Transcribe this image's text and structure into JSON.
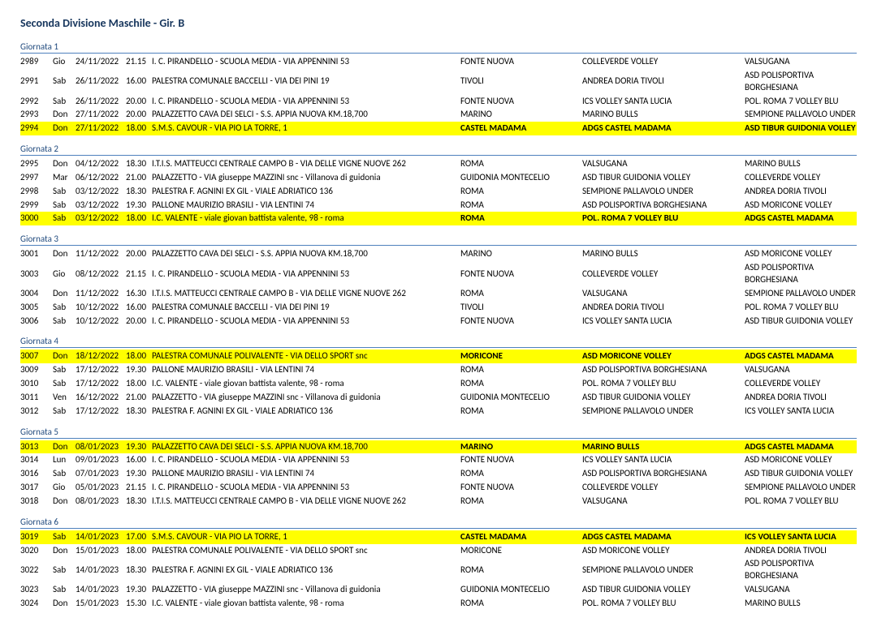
{
  "title": "Seconda Divisione Maschile  - Gir. B",
  "giornate": [
    {
      "label": "Giornata 1",
      "rows": [
        {
          "id": "2989",
          "day": "Gio",
          "date": "24/11/2022",
          "time": "21.15",
          "venue": "I. C. PIRANDELLO - SCUOLA MEDIA - VIA APPENNINI 53",
          "city": "FONTE NUOVA",
          "home": "COLLEVERDE VOLLEY",
          "away": "VALSUGANA",
          "hl": false
        },
        {
          "id": "2991",
          "day": "Sab",
          "date": "26/11/2022",
          "time": "16.00",
          "venue": "PALESTRA COMUNALE BACCELLI - VIA DEI PINI 19",
          "city": "TIVOLI",
          "home": "ANDREA DORIA TIVOLI",
          "away": "ASD POLISPORTIVA BORGHESIANA",
          "hl": false
        },
        {
          "id": "2992",
          "day": "Sab",
          "date": "26/11/2022",
          "time": "20.00",
          "venue": "I. C. PIRANDELLO - SCUOLA MEDIA - VIA APPENNINI 53",
          "city": "FONTE NUOVA",
          "home": "ICS VOLLEY SANTA LUCIA",
          "away": "POL. ROMA 7 VOLLEY BLU",
          "hl": false
        },
        {
          "id": "2993",
          "day": "Don",
          "date": "27/11/2022",
          "time": "20.00",
          "venue": "PALAZZETTO CAVA DEI SELCI - S.S. APPIA NUOVA KM.18,700",
          "city": "MARINO",
          "home": "MARINO  BULLS",
          "away": "SEMPIONE PALLAVOLO UNDER",
          "hl": false
        },
        {
          "id": "2994",
          "day": "Don",
          "date": "27/11/2022",
          "time": "18.00",
          "venue": "S.M.S. CAVOUR - VIA PIO LA TORRE, 1",
          "city": "CASTEL MADAMA",
          "home": "ADGS CASTEL MADAMA",
          "away": "ASD TIBUR GUIDONIA VOLLEY",
          "hl": true
        }
      ]
    },
    {
      "label": "Giornata 2",
      "rows": [
        {
          "id": "2995",
          "day": "Don",
          "date": "04/12/2022",
          "time": "18.30",
          "venue": "I.T.I.S. MATTEUCCI CENTRALE CAMPO B - VIA DELLE VIGNE NUOVE 262",
          "city": "ROMA",
          "home": "VALSUGANA",
          "away": "MARINO  BULLS",
          "hl": false
        },
        {
          "id": "2997",
          "day": "Mar",
          "date": "06/12/2022",
          "time": "21.00",
          "venue": "PALAZZETTO - VIA giuseppe MAZZINI snc - Villanova di guidonia",
          "city": "GUIDONIA MONTECELIO",
          "home": "ASD TIBUR GUIDONIA VOLLEY",
          "away": "COLLEVERDE VOLLEY",
          "hl": false
        },
        {
          "id": "2998",
          "day": "Sab",
          "date": "03/12/2022",
          "time": "18.30",
          "venue": "PALESTRA F. AGNINI EX GIL - VIALE ADRIATICO 136",
          "city": "ROMA",
          "home": "SEMPIONE PALLAVOLO UNDER",
          "away": "ANDREA DORIA TIVOLI",
          "hl": false
        },
        {
          "id": "2999",
          "day": "Sab",
          "date": "03/12/2022",
          "time": "19.30",
          "venue": "PALLONE MAURIZIO BRASILI - VIA LENTINI 74",
          "city": "ROMA",
          "home": "ASD POLISPORTIVA BORGHESIANA",
          "away": "ASD MORICONE VOLLEY",
          "hl": false
        },
        {
          "id": "3000",
          "day": "Sab",
          "date": "03/12/2022",
          "time": "18.00",
          "venue": "I.C. VALENTE - viale giovan battista valente, 98 - roma",
          "city": "ROMA",
          "home": "POL. ROMA 7 VOLLEY BLU",
          "away": "ADGS CASTEL MADAMA",
          "hl": true
        }
      ]
    },
    {
      "label": "Giornata 3",
      "rows": [
        {
          "id": "3001",
          "day": "Don",
          "date": "11/12/2022",
          "time": "20.00",
          "venue": "PALAZZETTO CAVA DEI SELCI - S.S. APPIA NUOVA KM.18,700",
          "city": "MARINO",
          "home": "MARINO  BULLS",
          "away": "ASD MORICONE VOLLEY",
          "hl": false
        },
        {
          "id": "3003",
          "day": "Gio",
          "date": "08/12/2022",
          "time": "21.15",
          "venue": "I. C. PIRANDELLO - SCUOLA MEDIA - VIA APPENNINI 53",
          "city": "FONTE NUOVA",
          "home": "COLLEVERDE VOLLEY",
          "away": "ASD POLISPORTIVA BORGHESIANA",
          "hl": false
        },
        {
          "id": "3004",
          "day": "Don",
          "date": "11/12/2022",
          "time": "16.30",
          "venue": "I.T.I.S. MATTEUCCI CENTRALE CAMPO B - VIA DELLE VIGNE NUOVE 262",
          "city": "ROMA",
          "home": "VALSUGANA",
          "away": "SEMPIONE PALLAVOLO UNDER",
          "hl": false
        },
        {
          "id": "3005",
          "day": "Sab",
          "date": "10/12/2022",
          "time": "16.00",
          "venue": "PALESTRA COMUNALE BACCELLI - VIA DEI PINI 19",
          "city": "TIVOLI",
          "home": "ANDREA DORIA TIVOLI",
          "away": "POL. ROMA 7 VOLLEY BLU",
          "hl": false
        },
        {
          "id": "3006",
          "day": "Sab",
          "date": "10/12/2022",
          "time": "20.00",
          "venue": "I. C. PIRANDELLO - SCUOLA MEDIA - VIA APPENNINI 53",
          "city": "FONTE NUOVA",
          "home": "ICS VOLLEY SANTA LUCIA",
          "away": "ASD TIBUR GUIDONIA VOLLEY",
          "hl": false
        }
      ]
    },
    {
      "label": "Giornata 4",
      "rows": [
        {
          "id": "3007",
          "day": "Don",
          "date": "18/12/2022",
          "time": "18.00",
          "venue": "PALESTRA COMUNALE POLIVALENTE - VIA DELLO SPORT snc",
          "city": "MORICONE",
          "home": "ASD MORICONE VOLLEY",
          "away": "ADGS CASTEL MADAMA",
          "hl": true
        },
        {
          "id": "3009",
          "day": "Sab",
          "date": "17/12/2022",
          "time": "19.30",
          "venue": "PALLONE MAURIZIO BRASILI - VIA LENTINI 74",
          "city": "ROMA",
          "home": "ASD POLISPORTIVA BORGHESIANA",
          "away": "VALSUGANA",
          "hl": false
        },
        {
          "id": "3010",
          "day": "Sab",
          "date": "17/12/2022",
          "time": "18.00",
          "venue": "I.C. VALENTE - viale giovan battista valente, 98 - roma",
          "city": "ROMA",
          "home": "POL. ROMA 7 VOLLEY BLU",
          "away": "COLLEVERDE VOLLEY",
          "hl": false
        },
        {
          "id": "3011",
          "day": "Ven",
          "date": "16/12/2022",
          "time": "21.00",
          "venue": "PALAZZETTO - VIA giuseppe MAZZINI snc - Villanova di guidonia",
          "city": "GUIDONIA MONTECELIO",
          "home": "ASD TIBUR GUIDONIA VOLLEY",
          "away": "ANDREA DORIA TIVOLI",
          "hl": false
        },
        {
          "id": "3012",
          "day": "Sab",
          "date": "17/12/2022",
          "time": "18.30",
          "venue": "PALESTRA F. AGNINI EX GIL - VIALE ADRIATICO 136",
          "city": "ROMA",
          "home": "SEMPIONE PALLAVOLO UNDER",
          "away": "ICS VOLLEY SANTA LUCIA",
          "hl": false
        }
      ]
    },
    {
      "label": "Giornata 5",
      "rows": [
        {
          "id": "3013",
          "day": "Don",
          "date": "08/01/2023",
          "time": "19.30",
          "venue": "PALAZZETTO CAVA DEI SELCI - S.S. APPIA NUOVA KM.18,700",
          "city": "MARINO",
          "home": "MARINO  BULLS",
          "away": "ADGS CASTEL MADAMA",
          "hl": true
        },
        {
          "id": "3014",
          "day": "Lun",
          "date": "09/01/2023",
          "time": "16.00",
          "venue": "I. C. PIRANDELLO - SCUOLA MEDIA - VIA APPENNINI 53",
          "city": "FONTE NUOVA",
          "home": "ICS VOLLEY SANTA LUCIA",
          "away": "ASD MORICONE VOLLEY",
          "hl": false
        },
        {
          "id": "3016",
          "day": "Sab",
          "date": "07/01/2023",
          "time": "19.30",
          "venue": "PALLONE MAURIZIO BRASILI - VIA LENTINI 74",
          "city": "ROMA",
          "home": "ASD POLISPORTIVA BORGHESIANA",
          "away": "ASD TIBUR GUIDONIA VOLLEY",
          "hl": false
        },
        {
          "id": "3017",
          "day": "Gio",
          "date": "05/01/2023",
          "time": "21.15",
          "venue": "I. C. PIRANDELLO - SCUOLA MEDIA - VIA APPENNINI 53",
          "city": "FONTE NUOVA",
          "home": "COLLEVERDE VOLLEY",
          "away": "SEMPIONE PALLAVOLO UNDER",
          "hl": false
        },
        {
          "id": "3018",
          "day": "Don",
          "date": "08/01/2023",
          "time": "18.30",
          "venue": "I.T.I.S. MATTEUCCI CENTRALE CAMPO B - VIA DELLE VIGNE NUOVE 262",
          "city": "ROMA",
          "home": "VALSUGANA",
          "away": "POL. ROMA 7 VOLLEY BLU",
          "hl": false
        }
      ]
    },
    {
      "label": "Giornata 6",
      "rows": [
        {
          "id": "3019",
          "day": "Sab",
          "date": "14/01/2023",
          "time": "17.00",
          "venue": "S.M.S. CAVOUR - VIA PIO LA TORRE, 1",
          "city": "CASTEL MADAMA",
          "home": "ADGS CASTEL MADAMA",
          "away": "ICS VOLLEY SANTA LUCIA",
          "hl": true
        },
        {
          "id": "3020",
          "day": "Don",
          "date": "15/01/2023",
          "time": "18.00",
          "venue": "PALESTRA COMUNALE POLIVALENTE - VIA DELLO SPORT snc",
          "city": "MORICONE",
          "home": "ASD MORICONE VOLLEY",
          "away": "ANDREA DORIA TIVOLI",
          "hl": false
        },
        {
          "id": "3022",
          "day": "Sab",
          "date": "14/01/2023",
          "time": "18.30",
          "venue": "PALESTRA F. AGNINI EX GIL - VIALE ADRIATICO 136",
          "city": "ROMA",
          "home": "SEMPIONE PALLAVOLO UNDER",
          "away": "ASD POLISPORTIVA BORGHESIANA",
          "hl": false
        },
        {
          "id": "3023",
          "day": "Sab",
          "date": "14/01/2023",
          "time": "19.30",
          "venue": "PALAZZETTO - VIA giuseppe MAZZINI snc - Villanova di guidonia",
          "city": "GUIDONIA MONTECELIO",
          "home": "ASD TIBUR GUIDONIA VOLLEY",
          "away": "VALSUGANA",
          "hl": false
        },
        {
          "id": "3024",
          "day": "Don",
          "date": "15/01/2023",
          "time": "15.30",
          "venue": "I.C. VALENTE - viale giovan battista valente, 98 - roma",
          "city": "ROMA",
          "home": "POL. ROMA 7 VOLLEY BLU",
          "away": "MARINO  BULLS",
          "hl": false
        }
      ]
    }
  ]
}
